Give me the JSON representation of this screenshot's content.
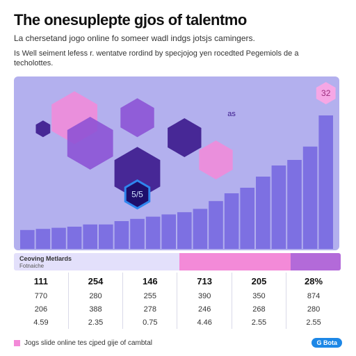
{
  "header": {
    "title": "The onesuplepte gjos of talentmo",
    "subtitle": "La chersetand jogo online fo someer wadl indgs jotsjs camingers.",
    "description": "Is Well seiment lefess r. wentatve rordind by specjojog yen rocedted Pegemiols de a techolottes."
  },
  "colors": {
    "panel": "#b3b0ee",
    "bar": "#7d70e2",
    "pink": "#f38ad8",
    "purple": "#8a4fd4",
    "deep_purple": "#3b1a8c",
    "badge_blue": "#1d87e6"
  },
  "chart_data": {
    "type": "bar",
    "values": [
      17,
      18,
      19,
      20,
      22,
      22,
      25,
      27,
      29,
      31,
      33,
      36,
      43,
      50,
      55,
      65,
      75,
      80,
      92,
      120
    ],
    "ylim": [
      0,
      150
    ],
    "annotations": [
      {
        "label": "5/5",
        "value": 49,
        "category_index": 7
      },
      {
        "label": "32",
        "value": 140,
        "category_index": 19
      },
      {
        "label": "as",
        "value": 122,
        "category_index": 13
      }
    ],
    "decorations": [
      {
        "shape": "hexagon",
        "color": "pink",
        "value": 118,
        "category_index": 3,
        "size": "large"
      },
      {
        "shape": "hexagon",
        "color": "purple",
        "value": 95,
        "category_index": 4,
        "size": "large"
      },
      {
        "shape": "hexagon",
        "color": "purple",
        "value": 118,
        "category_index": 7,
        "size": "medium"
      },
      {
        "shape": "hexagon",
        "color": "deep_purple",
        "value": 100,
        "category_index": 10,
        "size": "medium"
      },
      {
        "shape": "hexagon",
        "color": "pink",
        "value": 80,
        "category_index": 12,
        "size": "medium"
      },
      {
        "shape": "hexagon",
        "color": "deep_purple",
        "value": 68,
        "category_index": 7,
        "size": "large"
      },
      {
        "shape": "hexagon",
        "color": "deep_purple",
        "value": 108,
        "category_index": 1,
        "size": "small"
      }
    ]
  },
  "legend_strip": {
    "title": "Ceoving Metlards",
    "subtitle": "Fotnaiche"
  },
  "table": {
    "header": [
      "111",
      "254",
      "146",
      "713",
      "205",
      "28%"
    ],
    "rows": [
      [
        "770",
        "280",
        "255",
        "390",
        "350",
        "874"
      ],
      [
        "206",
        "388",
        "278",
        "246",
        "268",
        "280"
      ],
      [
        "4.59",
        "2.35",
        "0.75",
        "4.46",
        "2.55",
        "2.55"
      ]
    ]
  },
  "footer": {
    "legend_text": "Jogs slide online tes cjped gije of cambtal",
    "badge": "G Bota"
  }
}
